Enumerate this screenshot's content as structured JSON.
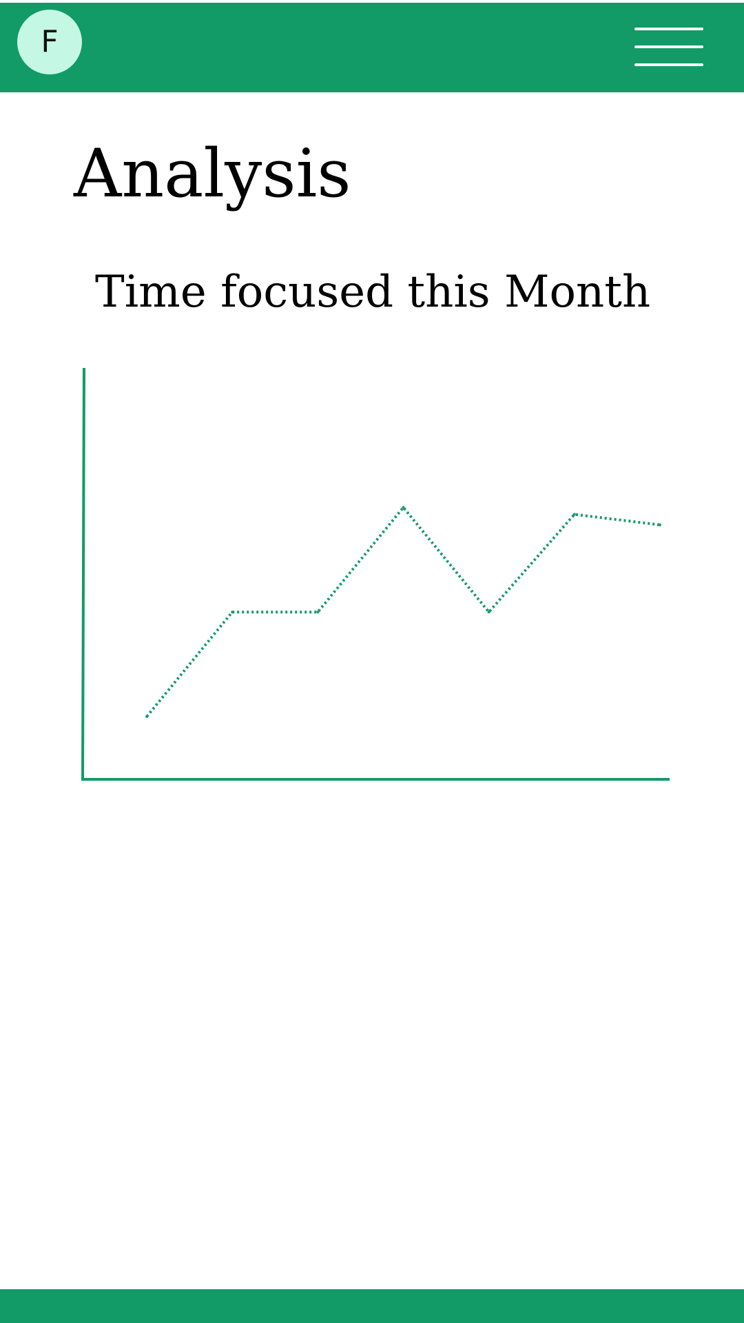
{
  "header": {
    "logo_letter": "F",
    "menu_icon": "hamburger-menu-icon"
  },
  "page": {
    "title": "Analysis"
  },
  "chart_data": {
    "type": "line",
    "title": "Time focused this Month",
    "xlabel": "",
    "ylabel": "",
    "x": [
      1,
      2,
      3,
      4,
      5,
      6,
      7
    ],
    "series": [
      {
        "values": [
          1.0,
          4.0,
          4.0,
          7.0,
          4.0,
          6.8,
          6.5
        ]
      }
    ],
    "xlim": [
      0.25,
      7.5
    ],
    "ylim": [
      -0.8,
      11.0
    ],
    "tick_labels_shown": false,
    "grid": false,
    "line_style": "dotted"
  },
  "colors": {
    "brand": "#129a67",
    "logo_background": "#c4f8e4",
    "chart_line": "#129a67",
    "axis": "#129a67"
  }
}
